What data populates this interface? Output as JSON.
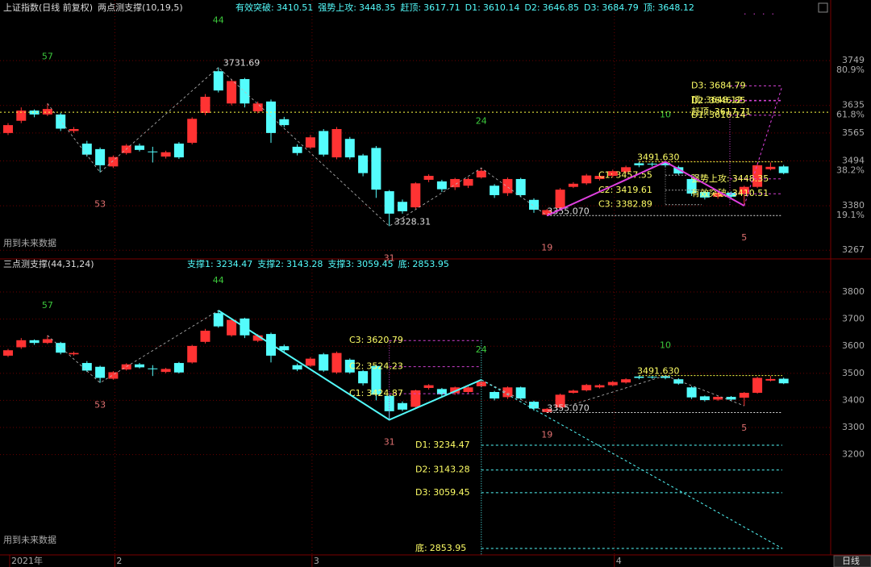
{
  "chart_data": [
    {
      "type": "candlestick",
      "title": "上证指数(日线 前复权)",
      "subtitle": "两点测支撑(10,19,5)",
      "note": "用到未来数据",
      "up_color": "#ff3333",
      "down_color": "#54fcfc",
      "grid": true,
      "open": [
        3565,
        3596,
        3622,
        3612,
        3612,
        3570,
        3538,
        3524,
        3480,
        3514,
        3533,
        3518,
        3505,
        3538,
        3540,
        3616,
        3722,
        3640,
        3702,
        3620,
        3645,
        3600,
        3530,
        3528,
        3570,
        3503,
        3550,
        3508,
        3527,
        3417,
        3390,
        3376,
        3446,
        3442,
        3427,
        3431,
        3452,
        3431,
        3412,
        3448,
        3395,
        3357,
        3374,
        3428,
        3437,
        3448,
        3456,
        3466,
        3488,
        3487,
        3489,
        3478,
        3448,
        3415,
        3403,
        3413,
        3410,
        3428,
        3473,
        3480
      ],
      "high": [
        3590,
        3630,
        3625,
        3640,
        3616,
        3580,
        3545,
        3528,
        3508,
        3537,
        3538,
        3530,
        3520,
        3542,
        3605,
        3664,
        3731.69,
        3702,
        3705,
        3645,
        3650,
        3606,
        3536,
        3560,
        3575,
        3580,
        3555,
        3512,
        3532,
        3420,
        3396,
        3440,
        3460,
        3446,
        3451,
        3452,
        3476,
        3435,
        3452,
        3451,
        3399,
        3372,
        3425,
        3440,
        3461,
        3460,
        3472,
        3482,
        3492,
        3490,
        3491.63,
        3482,
        3452,
        3418,
        3417,
        3416,
        3431,
        3487,
        3490,
        3484
      ],
      "low": [
        3560,
        3590,
        3605,
        3608,
        3570,
        3565,
        3505,
        3465,
        3476,
        3510,
        3518,
        3490,
        3500,
        3499,
        3536,
        3610,
        3668,
        3635,
        3630,
        3615,
        3540,
        3580,
        3508,
        3524,
        3505,
        3498,
        3498,
        3455,
        3400,
        3328.31,
        3360,
        3372,
        3440,
        3415,
        3420,
        3425,
        3449,
        3400,
        3405,
        3402,
        3362,
        3355.07,
        3370,
        3425,
        3433,
        3444,
        3452,
        3462,
        3478,
        3480,
        3478,
        3458,
        3405,
        3396,
        3398,
        3399,
        3380,
        3425,
        3470,
        3460
      ],
      "close": [
        3585,
        3622,
        3612,
        3626,
        3576,
        3575,
        3510,
        3483,
        3504,
        3533,
        3522,
        3517,
        3516,
        3503,
        3601,
        3657,
        3673,
        3697,
        3640,
        3640,
        3565,
        3585,
        3514,
        3554,
        3510,
        3575,
        3503,
        3463,
        3421,
        3360,
        3366,
        3437,
        3456,
        3422,
        3448,
        3448,
        3469,
        3407,
        3448,
        3407,
        3370,
        3369,
        3421,
        3436,
        3457,
        3456,
        3468,
        3478,
        3483,
        3486,
        3483,
        3462,
        3411,
        3401,
        3413,
        3403,
        3428,
        3483,
        3479,
        3463
      ],
      "ylim": [
        3247,
        3903
      ],
      "yticks": [
        3749,
        3635,
        3565,
        3494,
        3380,
        3267
      ],
      "fib": [
        {
          "value": 80.9,
          "label": "80.9%"
        },
        {
          "value": 61.8,
          "label": "61.8%"
        },
        {
          "value": 38.2,
          "label": "38.2%"
        },
        {
          "value": 19.1,
          "label": "19.1%"
        }
      ],
      "levels": [
        {
          "name": "有效突破:",
          "value": 3410.51
        },
        {
          "name": "强势上攻:",
          "value": 3448.35
        },
        {
          "name": "赶顶:",
          "value": 3617.71
        },
        {
          "name": "D1:",
          "value": 3610.14
        },
        {
          "name": "D2:",
          "value": 3646.85
        },
        {
          "name": "D3:",
          "value": 3684.79
        },
        {
          "name": "顶:",
          "value": 3648.12
        }
      ],
      "c_levels": [
        {
          "name": "C1:",
          "value": 3457.55
        },
        {
          "name": "C2:",
          "value": 3419.61
        },
        {
          "name": "C3:",
          "value": 3382.89
        }
      ],
      "pivots": [
        {
          "index": 3,
          "count": 57
        },
        {
          "index": 7,
          "count": 53
        },
        {
          "index": 16,
          "count": 44,
          "label": "3731.69"
        },
        {
          "index": 29,
          "count": 31,
          "label": "3328.31"
        },
        {
          "index": 36,
          "count": 24
        },
        {
          "index": 41,
          "count": 19,
          "label": "3355.070"
        },
        {
          "index": 50,
          "count": 10,
          "label": "3491.630"
        },
        {
          "index": 56,
          "count": 5
        }
      ]
    },
    {
      "type": "candlestick",
      "title": "三点测支撑(44,31,24)",
      "note": "用到未来数据",
      "grid": true,
      "ylim": [
        2830,
        3919
      ],
      "yticks": [
        3800,
        3700,
        3600,
        3500,
        3400,
        3300,
        3200
      ],
      "levels": [
        {
          "name": "支撑1:",
          "value": 3234.47
        },
        {
          "name": "支撑2:",
          "value": 3143.28
        },
        {
          "name": "支撑3:",
          "value": 3059.45
        },
        {
          "name": "底:",
          "value": 2853.95
        }
      ],
      "level_labels": [
        "D1:",
        "D2:",
        "D3:",
        "底:"
      ],
      "c_levels": [
        {
          "name": "C1:",
          "value": 3424.87
        },
        {
          "name": "C2:",
          "value": 3524.23
        },
        {
          "name": "C3:",
          "value": 3620.79
        }
      ],
      "xticks": [
        {
          "value": 0,
          "label": "2021年"
        },
        {
          "value": 8,
          "label": "2"
        },
        {
          "value": 23,
          "label": "3"
        },
        {
          "value": 46,
          "label": "4"
        }
      ],
      "period": "日线"
    }
  ]
}
